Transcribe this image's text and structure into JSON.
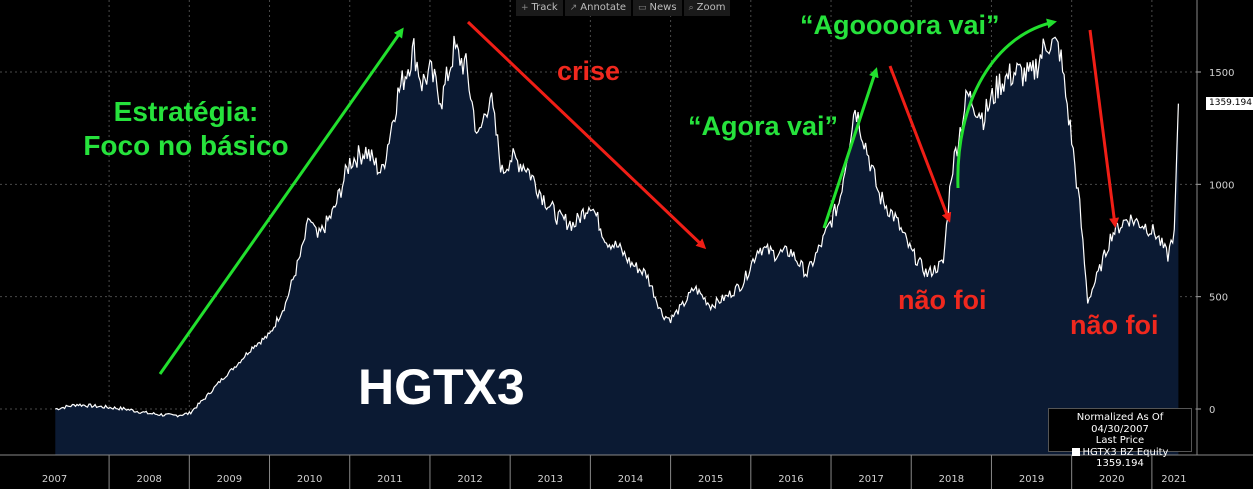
{
  "toolbar": [
    {
      "icon": "crosshair-icon",
      "glyph": "+",
      "label": "Track"
    },
    {
      "icon": "pencil-icon",
      "glyph": "↗",
      "label": "Annotate"
    },
    {
      "icon": "news-icon",
      "glyph": "▭",
      "label": "News"
    },
    {
      "icon": "zoom-icon",
      "glyph": "⌕",
      "label": "Zoom"
    }
  ],
  "annotations": {
    "strategy_line1": "Estratégia:",
    "strategy_line2": "Foco no básico",
    "crisis": "crise",
    "agora_vai": "“Agora vai”",
    "agoooora_vai": "“Agoooora vai”",
    "nao_foi_1": "não foi",
    "nao_foi_2": "não foi",
    "ticker": "HGTX3"
  },
  "legend": {
    "line1": "Normalized As Of 04/30/2007",
    "line2": "Last Price",
    "series_name": "HGTX3 BZ Equity",
    "series_value": "1359.194"
  },
  "last_price_tag": "1359.194",
  "colors": {
    "background": "#000000",
    "area_fill": "#0b1a33",
    "line": "#ffffff",
    "green_arrow": "#22e02e",
    "red_arrow": "#f01e16"
  },
  "chart_data": {
    "type": "area",
    "ylim": [
      -50,
      1720
    ],
    "yticks": [
      0,
      500,
      1000,
      1500
    ],
    "y_axis_position": "right",
    "grid": true,
    "legend_placement": "bottom-right",
    "x_ticks": [
      "2007",
      "2008",
      "2009",
      "2010",
      "2011",
      "2012",
      "2013",
      "2014",
      "2015",
      "2016",
      "2017",
      "2018",
      "2019",
      "2020",
      "2021"
    ],
    "series": [
      {
        "name": "HGTX3 BZ Equity",
        "x": [
          2007.33,
          2007.6,
          2007.9,
          2008.2,
          2008.5,
          2008.8,
          2009.0,
          2009.2,
          2009.4,
          2009.6,
          2009.8,
          2010.0,
          2010.2,
          2010.4,
          2010.5,
          2010.6,
          2010.8,
          2011.0,
          2011.2,
          2011.4,
          2011.6,
          2011.8,
          2011.9,
          2012.0,
          2012.15,
          2012.3,
          2012.45,
          2012.6,
          2012.75,
          2012.9,
          2013.0,
          2013.2,
          2013.4,
          2013.6,
          2013.8,
          2014.0,
          2014.2,
          2014.35,
          2014.5,
          2014.7,
          2014.9,
          2015.0,
          2015.15,
          2015.3,
          2015.5,
          2015.7,
          2015.9,
          2016.1,
          2016.3,
          2016.5,
          2016.7,
          2016.9,
          2017.1,
          2017.3,
          2017.45,
          2017.6,
          2017.8,
          2018.0,
          2018.2,
          2018.4,
          2018.5,
          2018.7,
          2018.9,
          2019.1,
          2019.3,
          2019.5,
          2019.7,
          2019.85,
          2020.0,
          2020.1,
          2020.2,
          2020.35,
          2020.5,
          2020.7,
          2020.9,
          2021.05,
          2021.2,
          2021.28,
          2021.33
        ],
        "values": [
          0,
          20,
          10,
          0,
          -20,
          -30,
          -20,
          50,
          130,
          200,
          280,
          330,
          470,
          700,
          850,
          760,
          880,
          1100,
          1150,
          1050,
          1400,
          1600,
          1450,
          1500,
          1380,
          1600,
          1520,
          1200,
          1400,
          1050,
          1120,
          1080,
          950,
          850,
          820,
          920,
          750,
          720,
          650,
          600,
          420,
          400,
          460,
          540,
          460,
          500,
          560,
          720,
          690,
          700,
          600,
          750,
          920,
          1350,
          1150,
          950,
          850,
          700,
          600,
          650,
          1050,
          1400,
          1300,
          1450,
          1500,
          1480,
          1640,
          1600,
          1200,
          900,
          480,
          620,
          780,
          850,
          820,
          780,
          680,
          800,
          1359.194
        ]
      }
    ]
  }
}
